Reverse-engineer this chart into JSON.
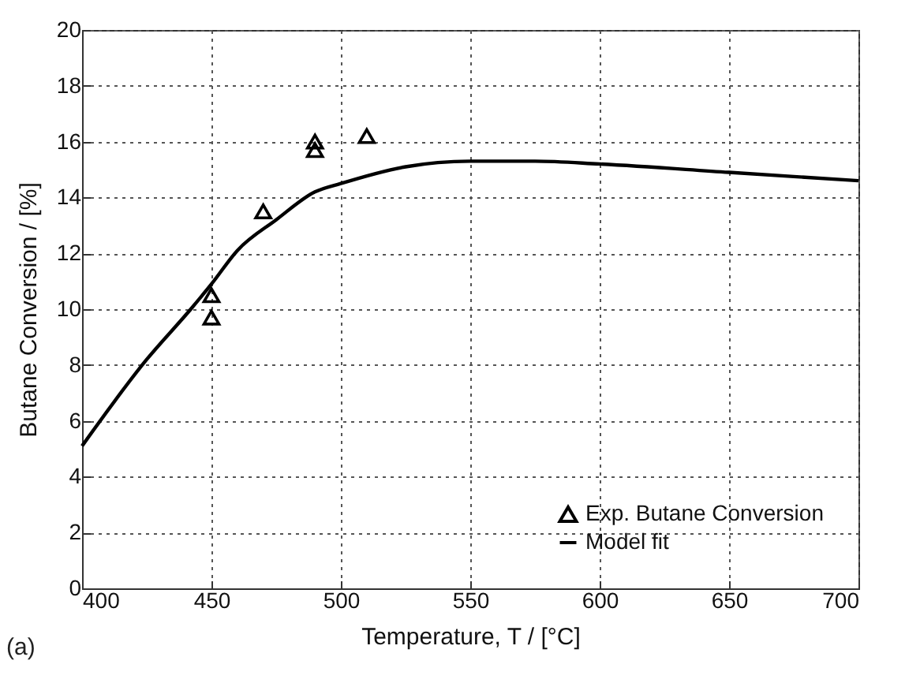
{
  "chart_data": {
    "type": "scatter",
    "xlabel": "Temperature, T / [°C]",
    "ylabel": "Butane Conversion / [%]",
    "xlim": [
      400,
      700
    ],
    "xticks": [
      400,
      450,
      500,
      550,
      600,
      650,
      700
    ],
    "ylim": [
      0,
      20
    ],
    "yticks": [
      0,
      2,
      4,
      6,
      8,
      10,
      12,
      14,
      16,
      18,
      20
    ],
    "grid": true,
    "legend": "bottom right",
    "annotations": [
      "(a)"
    ],
    "series": [
      {
        "name": "Exp. Butane Conversion",
        "marker": "triangle",
        "color": "#000000",
        "x": [
          450,
          450,
          470,
          490,
          490,
          510
        ],
        "values": [
          10.5,
          9.7,
          13.5,
          16.0,
          15.7,
          16.2
        ]
      },
      {
        "name": "Model fit",
        "type": "line",
        "line_style": "solid",
        "color": "#000000",
        "x": [
          400,
          425,
          442,
          450,
          460,
          475,
          490,
          500,
          525,
          550,
          575,
          600,
          650,
          700
        ],
        "values": [
          5.1,
          8.2,
          10.0,
          10.9,
          12.1,
          13.2,
          14.2,
          14.5,
          15.1,
          15.3,
          15.3,
          15.2,
          14.9,
          14.6
        ]
      }
    ]
  }
}
